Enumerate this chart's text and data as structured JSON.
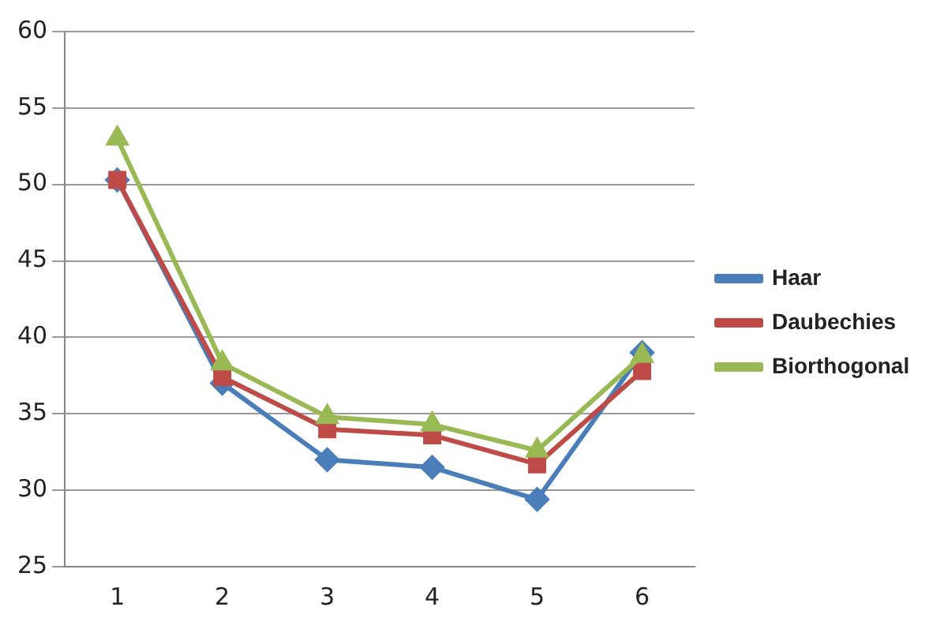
{
  "chart_data": {
    "type": "line",
    "categories": [
      "1",
      "2",
      "3",
      "4",
      "5",
      "6"
    ],
    "series": [
      {
        "name": "Haar",
        "color": "#4a7ebb",
        "marker": "diamond",
        "values": [
          50.3,
          37,
          32,
          31.5,
          29.4,
          39
        ]
      },
      {
        "name": "Daubechies",
        "color": "#be4b48",
        "marker": "square",
        "values": [
          50.3,
          37.4,
          34,
          33.6,
          31.7,
          37.8
        ]
      },
      {
        "name": "Biorthogonal",
        "color": "#98b954",
        "marker": "triangle",
        "values": [
          53,
          38.3,
          34.8,
          34.3,
          32.6,
          38.8
        ]
      }
    ],
    "ylim": [
      25,
      60
    ],
    "yticks": [
      25,
      30,
      35,
      40,
      45,
      50,
      55,
      60
    ],
    "grid": "y",
    "legend": "right"
  }
}
